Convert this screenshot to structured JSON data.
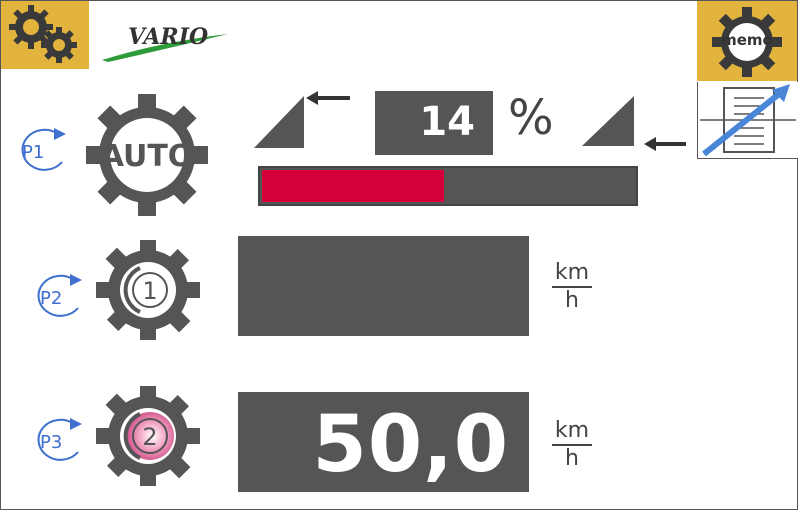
{
  "header": {
    "logo_text": "VARIO",
    "memo_label": "memo"
  },
  "profiles": {
    "p1": "P1",
    "p2": "P2",
    "p3": "P3"
  },
  "gears": {
    "auto_label": "AUTO",
    "cruise1_label": "1",
    "cruise2_label": "2"
  },
  "setting": {
    "value": "14",
    "unit": "%",
    "fill_fraction": 0.49
  },
  "cruise1": {
    "speed": "",
    "unit_num": "km",
    "unit_den": "h"
  },
  "cruise2": {
    "speed": "50,0",
    "unit_num": "km",
    "unit_den": "h"
  },
  "colors": {
    "accent_yellow": "#e3b43d",
    "bar_red": "#d5003a",
    "dark_gray": "#555555",
    "profile_blue": "#3f6fcf",
    "active_pink": "#d9528c"
  }
}
